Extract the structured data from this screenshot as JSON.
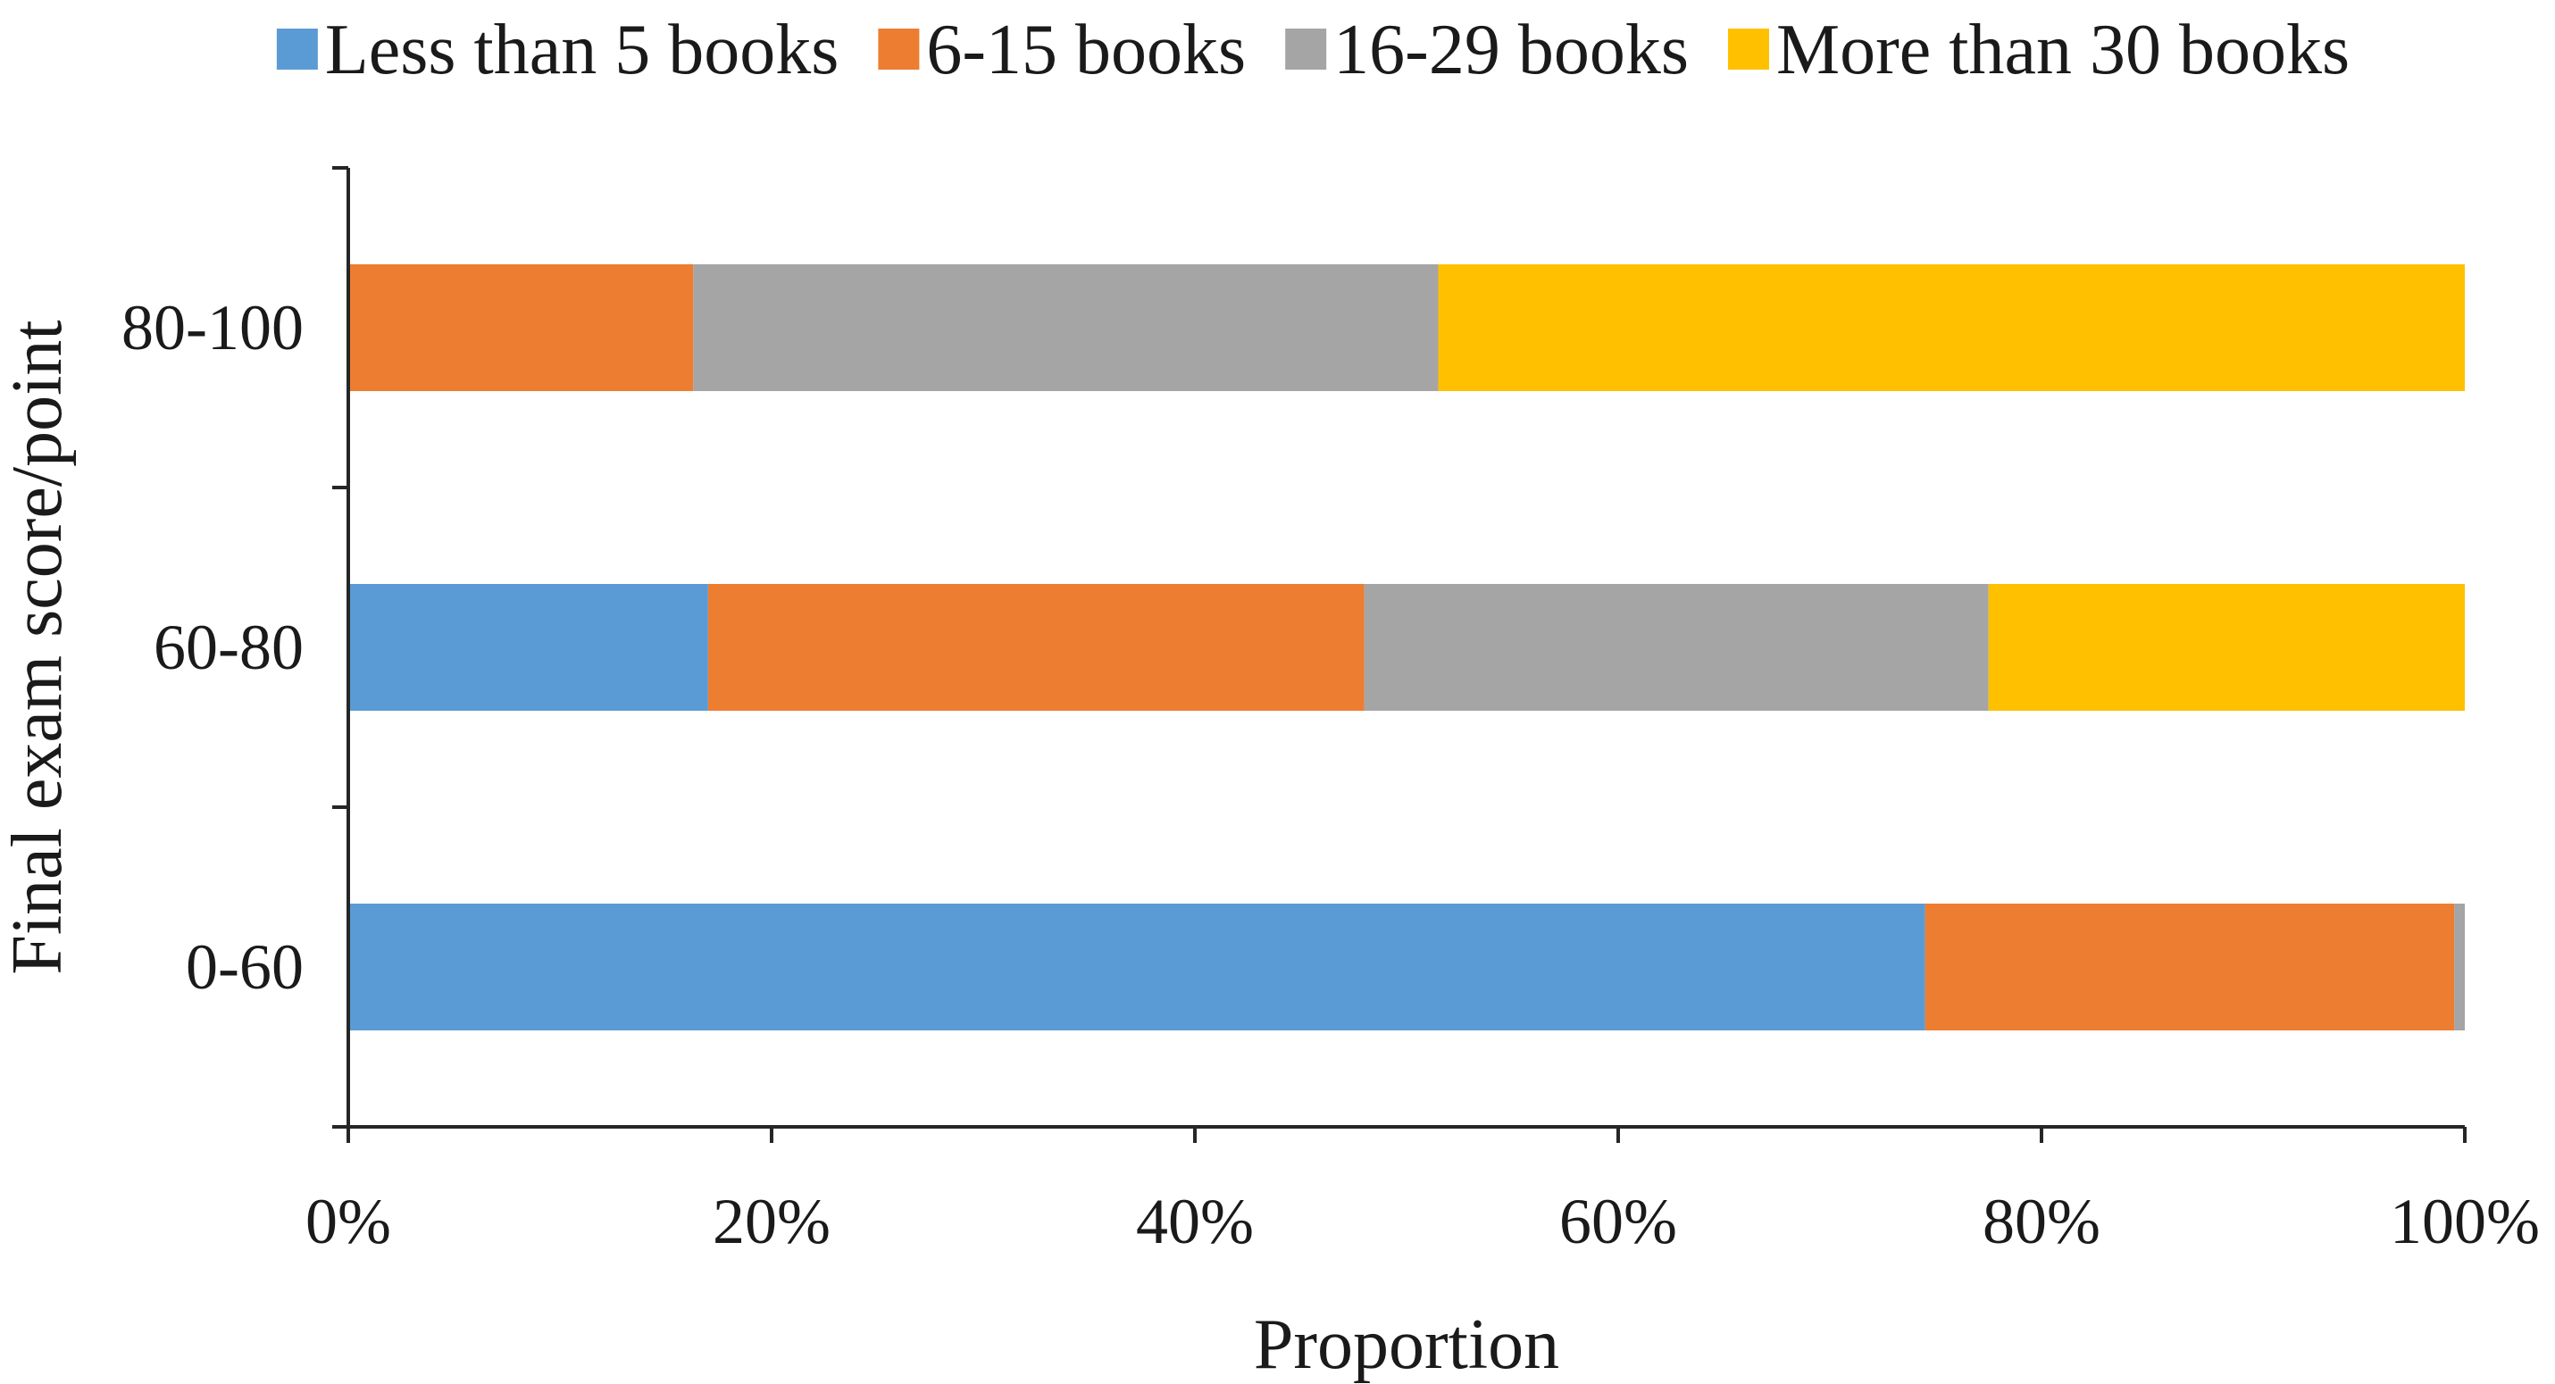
{
  "chart_data": {
    "type": "bar",
    "orientation": "horizontal",
    "stacked": "percent",
    "title": "",
    "xlabel": "Proportion",
    "ylabel": "Final exam score/point",
    "categories": [
      "0-60",
      "60-80",
      "80-100"
    ],
    "x_ticks": [
      "0%",
      "20%",
      "40%",
      "60%",
      "80%",
      "100%"
    ],
    "xlim": [
      0,
      100
    ],
    "grid": false,
    "legend_position": "top",
    "series": [
      {
        "name": "Less than 5 books",
        "color": "#5b9bd5",
        "values": [
          74.5,
          17,
          0
        ]
      },
      {
        "name": "6-15 books",
        "color": "#ed7d31",
        "values": [
          25,
          31,
          16.3
        ]
      },
      {
        "name": "16-29 books",
        "color": "#a5a5a5",
        "values": [
          0.5,
          29.5,
          35.2
        ]
      },
      {
        "name": "More than 30 books",
        "color": "#ffc000",
        "values": [
          0,
          22.5,
          48.5
        ]
      }
    ]
  }
}
